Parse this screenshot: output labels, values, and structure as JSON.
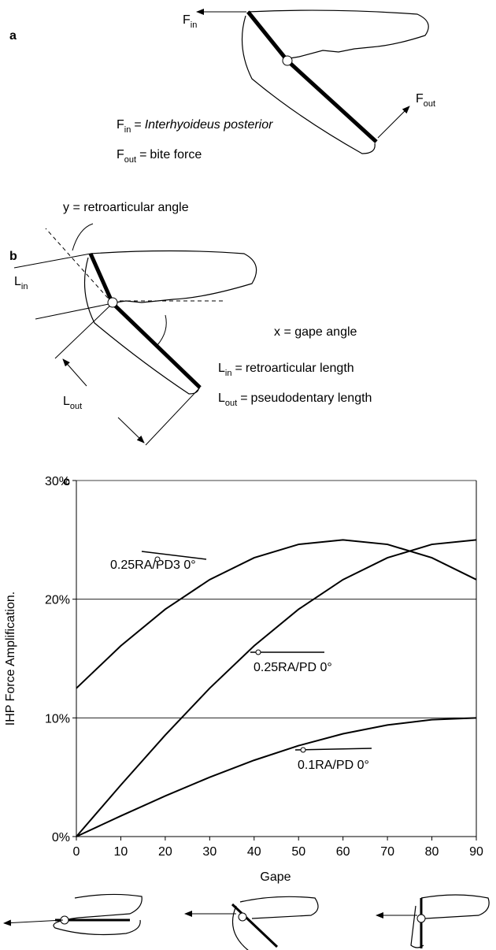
{
  "panel_a": {
    "label": "a",
    "fin": {
      "main": "F",
      "sub": "in"
    },
    "fout": {
      "main": "F",
      "sub": "out"
    },
    "legend_in": {
      "main": "F",
      "sub": "in",
      "equals": "=",
      "text": "Interhyoideus posterior"
    },
    "legend_out": {
      "main": "F",
      "sub": "out",
      "equals": "=",
      "text": "bite force"
    }
  },
  "panel_b": {
    "label": "b",
    "y_angle": "y = retroarticular angle",
    "x_angle": "x = gape angle",
    "lin": {
      "main": "L",
      "sub": "in"
    },
    "lout": {
      "main": "L",
      "sub": "out"
    },
    "legend_in": {
      "main": "L",
      "sub": "in",
      "equals": "=",
      "text": "retroarticular length"
    },
    "legend_out": {
      "main": "L",
      "sub": "out",
      "equals": "=",
      "text": "pseudodentary length"
    }
  },
  "chart_data": {
    "type": "line",
    "panel_label": "c",
    "xlabel": "Gape",
    "ylabel": "IHP Force Amplification.",
    "x": [
      0,
      10,
      20,
      30,
      40,
      50,
      60,
      70,
      80,
      90
    ],
    "series": [
      {
        "name": "0.25RA/PD3 0°",
        "color": "#000000",
        "values": [
          12.5,
          16.07,
          19.15,
          21.65,
          23.49,
          24.62,
          25,
          24.62,
          23.49,
          21.65
        ]
      },
      {
        "name": "0.25RA/PD 0°",
        "color": "#000000",
        "values": [
          0,
          4.34,
          8.55,
          12.5,
          16.07,
          19.15,
          21.65,
          23.49,
          24.62,
          25
        ]
      },
      {
        "name": "0.1RA/PD 0°",
        "color": "#000000",
        "values": [
          0,
          1.74,
          3.42,
          5,
          6.43,
          7.66,
          8.66,
          9.4,
          9.85,
          10
        ]
      }
    ],
    "xlim": [
      0,
      90
    ],
    "xticks": [
      0,
      10,
      20,
      30,
      40,
      50,
      60,
      70,
      80,
      90
    ],
    "ylim": [
      0,
      30
    ],
    "yticks": [
      {
        "value": 0,
        "label": "0%"
      },
      {
        "value": 10,
        "label": "10%"
      },
      {
        "value": 20,
        "label": "20%"
      },
      {
        "value": 30,
        "label": "30%"
      }
    ],
    "grid": true
  }
}
